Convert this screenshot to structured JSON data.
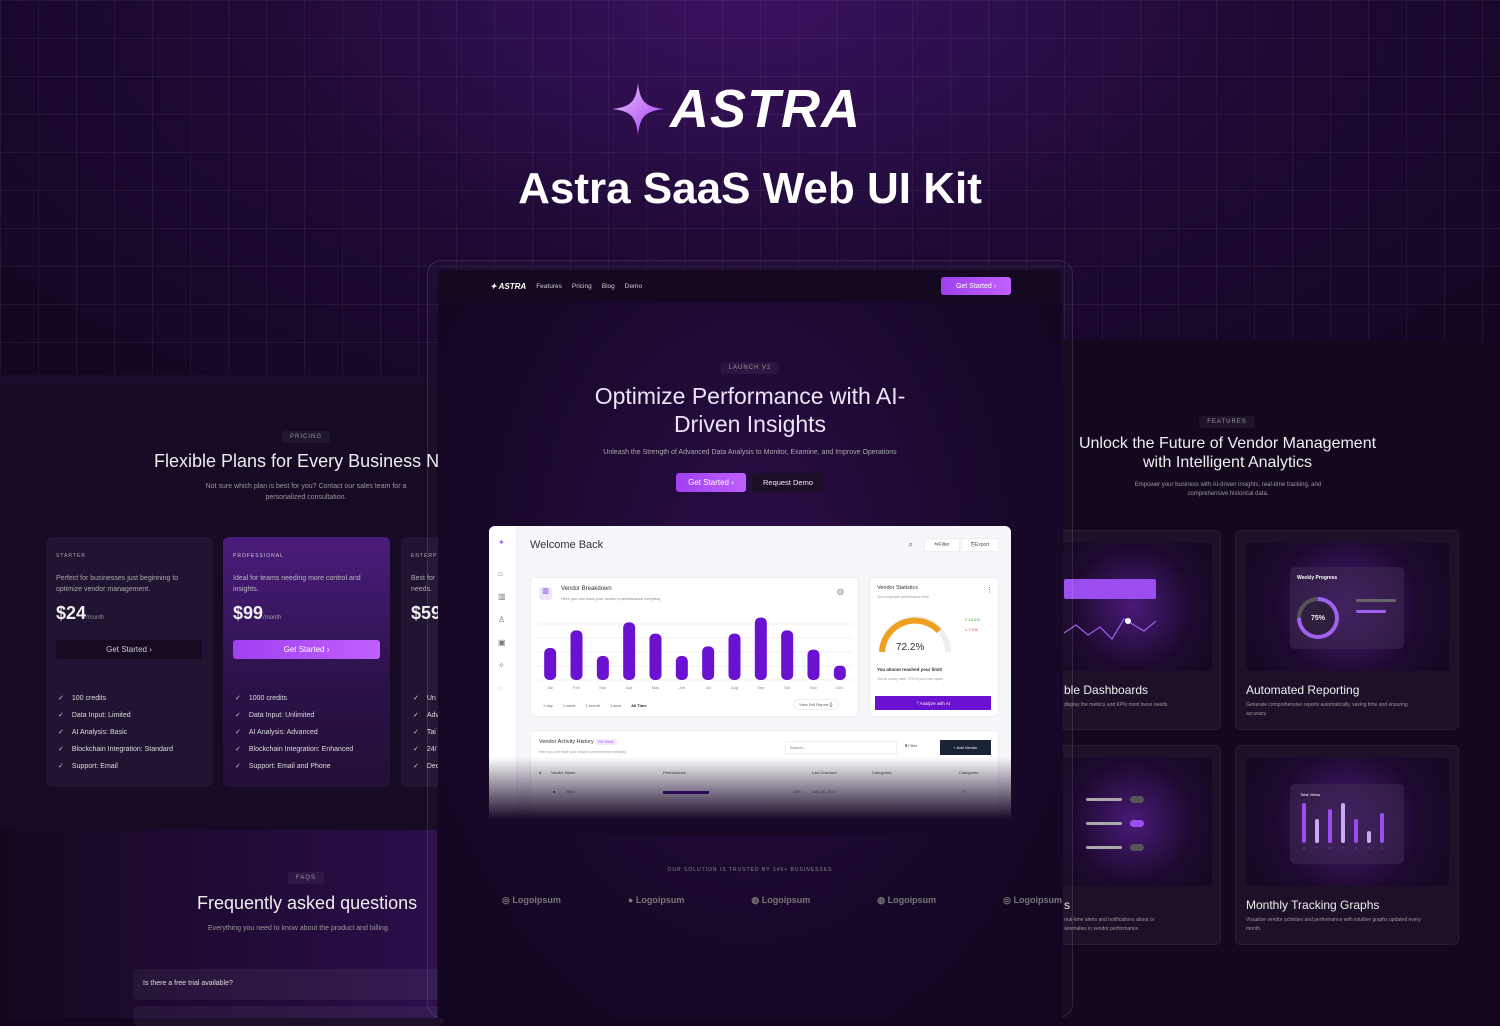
{
  "brand": {
    "name": "ASTRA",
    "kit_title": "Astra SaaS Web UI Kit"
  },
  "colors": {
    "accent": "#a855f7",
    "bar": "#6a12d0",
    "gauge": "#f0a020",
    "bg": "#12061f"
  },
  "center": {
    "nav": {
      "logo": "ASTRA",
      "links": [
        "Features",
        "Pricing",
        "Blog",
        "Demo"
      ],
      "cta": "Get Started ›"
    },
    "hero": {
      "tag": "LAUNCH V2",
      "title": "Optimize Performance with AI-Driven Insights",
      "subtitle": "Unleash the Strength of Advanced Data Analysis to Monitor, Examine, and Improve Operations",
      "primary": "Get Started ›",
      "secondary": "Request Demo"
    },
    "dashboard": {
      "title": "Welcome Back",
      "filter": "Filter",
      "export": "Export",
      "breakdown": {
        "title": "Vendor Breakdown",
        "subtitle": "Here you can track your vendor's performance everyday",
        "ranges": [
          "1 day",
          "1 week",
          "1 month",
          "1 year",
          "All Time"
        ],
        "report": "View Full Report"
      },
      "stats": {
        "title": "Vendor Statistics",
        "subtitle": "Your employee performance level",
        "value": "72.2%",
        "up": "19.2%",
        "down": "7.2%",
        "limit_title": "You almost reached your limit!",
        "limit_text": "You've nearly used 72% of your free space",
        "analyze": "Analyze with AI"
      },
      "activity": {
        "title": "Vendor Activity History",
        "badge": "Per Week",
        "subtitle": "Here you can track your vendor's performance everyday",
        "search_placeholder": "Search...",
        "filter": "Filter",
        "add": "+ Add Vendor",
        "columns": [
          "Vendor Name",
          "Performance",
          "Last Checked",
          "Categories",
          "Categories"
        ],
        "row": {
          "name": "Blox",
          "percent": "38%",
          "date": "July 15, 2024"
        }
      }
    },
    "trusted": "OUR SOLUTION IS TRUSTED BY 245+ BUSINESSES",
    "logos": [
      "Logoipsum",
      "Logoipsum",
      "Logoipsum",
      "Logoipsum",
      "Logoipsum"
    ]
  },
  "chart_data": {
    "type": "bar",
    "categories": [
      "Jan",
      "Feb",
      "Mar",
      "Apr",
      "May",
      "Jun",
      "Jul",
      "Aug",
      "Sep",
      "Oct",
      "Nov",
      "Dec"
    ],
    "values": [
      40,
      62,
      30,
      72,
      58,
      30,
      42,
      58,
      78,
      62,
      38,
      18
    ]
  },
  "pricing": {
    "tag": "PRICING",
    "title": "Flexible Plans for Every Business Ne",
    "subtitle": "Not sure which plan is best for you? Contact our sales team for a personalized consultation.",
    "plans": [
      {
        "name": "STARTER",
        "desc": "Perfect for businesses just beginning to optimize vendor management.",
        "price": "$24",
        "period": "/month",
        "cta": "Get Started ›",
        "features": [
          "100 credits",
          "Data Input: Limited",
          "AI Analysis: Basic",
          "Blockchain Integration: Standard",
          "Support: Email"
        ]
      },
      {
        "name": "PROFESSIONAL",
        "desc": "Ideal for teams needing more control and insights.",
        "price": "$99",
        "period": "/month",
        "cta": "Get Started ›",
        "features": [
          "1000 credits",
          "Data Input: Unlimited",
          "AI Analysis: Advanced",
          "Blockchain Integration: Enhanced",
          "Support: Email and Phone"
        ]
      },
      {
        "name": "ENTERP",
        "desc": "Best for needs.",
        "price": "$59",
        "features": [
          "Un",
          "Adv",
          "Tai",
          "24/",
          "Ded"
        ]
      }
    ]
  },
  "faq": {
    "tag": "FAQS",
    "title": "Frequently asked questions",
    "subtitle": "Everything you need to know about the product and billing.",
    "q1": "Is there a free trial available?"
  },
  "features": {
    "tag": "FEATURES",
    "title": "Unlock the Future of Vendor Management with Intelligent Analytics",
    "subtitle": "Empower your business with AI-driven insights, real-time tracking, and comprehensive historical data.",
    "cards": [
      {
        "title": "ble Dashboards",
        "desc": "display the metrics and KPIs most iness needs."
      },
      {
        "title": "Automated Reporting",
        "desc": "Generate comprehensive reports automatically, saving time and ensuring accuracy.",
        "widget": "Weekly Progress",
        "value": "75%"
      },
      {
        "title": "s",
        "desc": "real-time alerts and notifications about or anomalies in vendor performance."
      },
      {
        "title": "Monthly Tracking Graphs",
        "desc": "Visualize vendor activities and performance with intuitive graphs updated every month.",
        "widget": "Total Views",
        "days": [
          "M",
          "T",
          "W",
          "T",
          "F",
          "S",
          "S"
        ]
      }
    ]
  }
}
